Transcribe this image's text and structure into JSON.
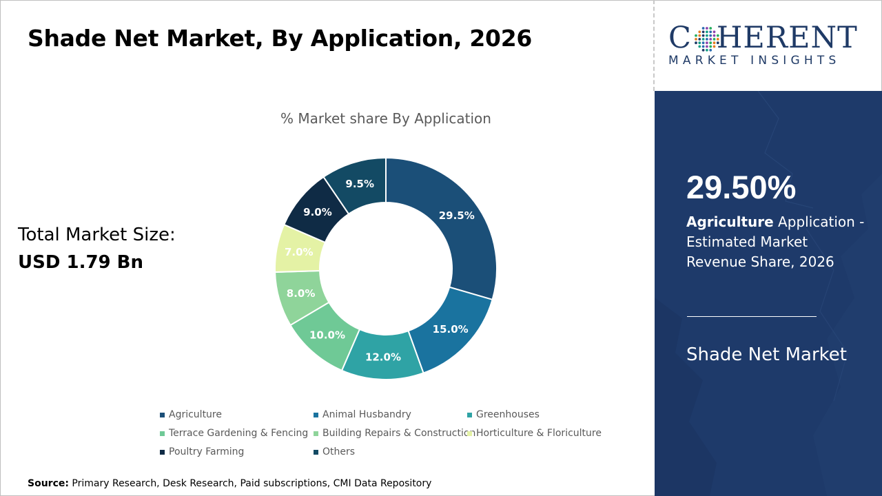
{
  "header": {
    "title": "Shade Net Market, By Application, 2026"
  },
  "logo": {
    "word_left": "C",
    "word_right": "HERENT",
    "subtitle": "MARKET INSIGHTS"
  },
  "summary": {
    "label": "Total Market Size:",
    "value": "USD 1.79 Bn"
  },
  "panel": {
    "kpi": "29.50%",
    "segment": "Agriculture",
    "description": " Application - Estimated Market Revenue Share, 2026",
    "footer": "Shade Net Market"
  },
  "source": {
    "label": "Source:",
    "text": " Primary Research, Desk Research, Paid subscriptions, CMI Data Repository"
  },
  "colors": {
    "panel": "#1e3a6a",
    "logo": "#1f3a66"
  },
  "chart_data": {
    "type": "pie",
    "title": "% Market share By Application",
    "donut": true,
    "categories": [
      "Agriculture",
      "Animal Husbandry",
      "Greenhouses",
      "Terrace Gardening & Fencing",
      "Building Repairs & Construction",
      "Horticulture & Floriculture",
      "Poultry Farming",
      "Others"
    ],
    "values": [
      29.5,
      15.0,
      12.0,
      10.0,
      8.0,
      7.0,
      9.0,
      9.5
    ],
    "labels": [
      "29.5%",
      "15.0%",
      "12.0%",
      "10.0%",
      "8.0%",
      "7.0%",
      "9.0%",
      "9.5%"
    ],
    "colors": [
      "#1b4f78",
      "#1a739f",
      "#2fa3a5",
      "#6fc996",
      "#8fd49a",
      "#e4f2a5",
      "#0f2b45",
      "#134a64"
    ],
    "legend_position": "bottom"
  }
}
